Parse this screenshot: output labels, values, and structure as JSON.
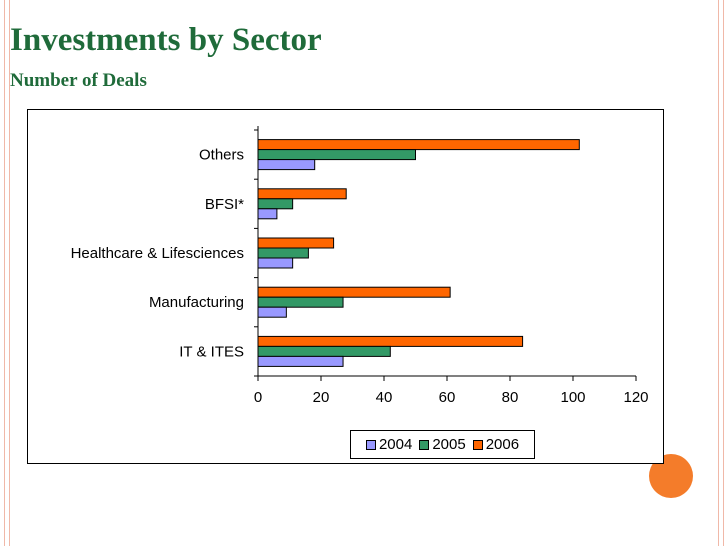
{
  "slide": {
    "title": "Investments by Sector",
    "subtitle": "Number of Deals"
  },
  "theme": {
    "accent": "#f47c2a",
    "title_color": "#1f6b3a"
  },
  "chart_data": {
    "type": "bar",
    "orientation": "horizontal",
    "title": "",
    "xlabel": "",
    "ylabel": "",
    "xlim": [
      0,
      120
    ],
    "xticks": [
      0,
      20,
      40,
      60,
      80,
      100,
      120
    ],
    "grid": false,
    "legend_position": "bottom",
    "categories": [
      "Others",
      "BFSI*",
      "Healthcare & Lifesciences",
      "Manufacturing",
      "IT & ITES"
    ],
    "series": [
      {
        "name": "2004",
        "color": "#9999ff",
        "values": [
          18,
          6,
          11,
          9,
          27
        ]
      },
      {
        "name": "2005",
        "color": "#339966",
        "values": [
          50,
          11,
          16,
          27,
          42
        ]
      },
      {
        "name": "2006",
        "color": "#ff6600",
        "values": [
          102,
          28,
          24,
          61,
          84
        ]
      }
    ]
  }
}
